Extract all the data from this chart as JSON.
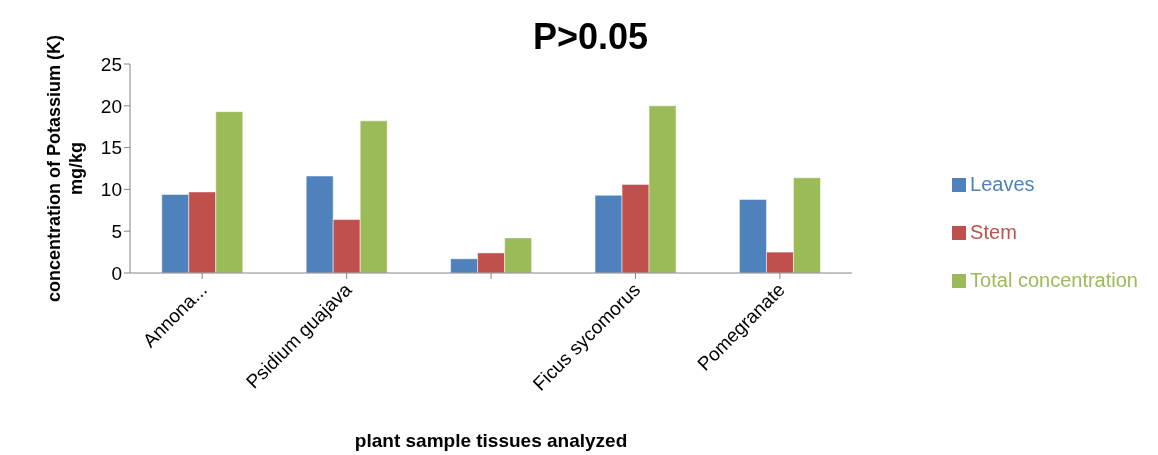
{
  "chart_data": {
    "type": "bar",
    "title": "P>0.05",
    "xlabel": "plant sample tissues analyzed",
    "ylabel": "concentration of Potassium (K) mg/kg",
    "categories": [
      "Annona...",
      "Psidium guajava",
      null,
      "Ficus sycomorus",
      "Pomegranate"
    ],
    "series": [
      {
        "name": "Leaves",
        "color": "#4f81bd",
        "values": [
          9.4,
          11.6,
          1.7,
          9.3,
          8.8
        ]
      },
      {
        "name": "Stem",
        "color": "#c0504d",
        "values": [
          9.7,
          6.4,
          2.4,
          10.6,
          2.5
        ]
      },
      {
        "name": "Total concentration",
        "color": "#9bbb59",
        "values": [
          19.3,
          18.2,
          4.2,
          20.0,
          11.4
        ]
      }
    ],
    "ylim": [
      0,
      25
    ],
    "yticks": [
      0,
      5,
      10,
      15,
      20,
      25
    ],
    "grid": false,
    "legend": "right"
  }
}
